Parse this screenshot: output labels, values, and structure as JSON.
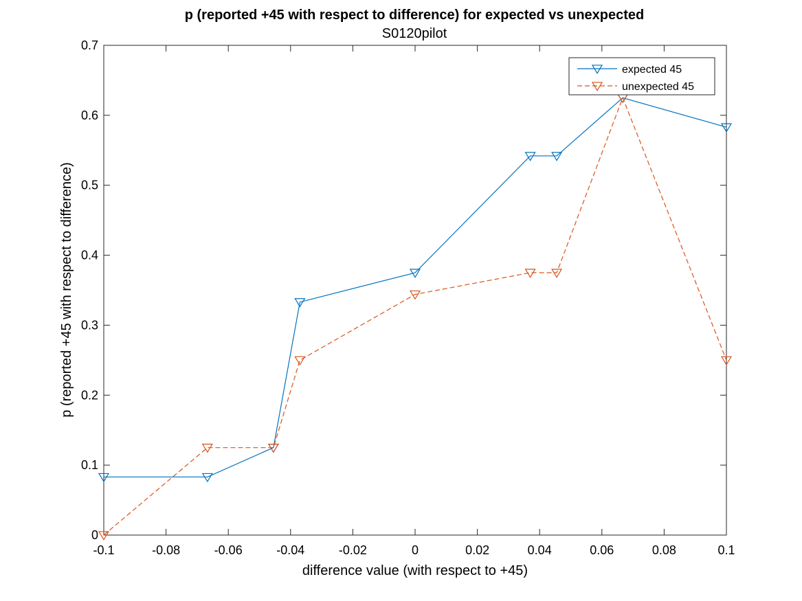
{
  "chart_data": {
    "type": "line",
    "title": "p  (reported +45 with respect to difference) for expected vs unexpected",
    "subtitle": "S0120pilot",
    "xlabel": "difference value (with respect to +45)",
    "ylabel": "p (reported +45 with respect to difference)",
    "xlim": [
      -0.1,
      0.1
    ],
    "ylim": [
      0,
      0.7
    ],
    "xticks": [
      -0.1,
      -0.08,
      -0.06,
      -0.04,
      -0.02,
      0,
      0.02,
      0.04,
      0.06,
      0.08,
      0.1
    ],
    "xtick_labels": [
      "-0.1",
      "-0.08",
      "-0.06",
      "-0.04",
      "-0.02",
      "0",
      "0.02",
      "0.04",
      "0.06",
      "0.08",
      "0.1"
    ],
    "yticks": [
      0,
      0.1,
      0.2,
      0.3,
      0.4,
      0.5,
      0.6,
      0.7
    ],
    "ytick_labels": [
      "0",
      "0.1",
      "0.2",
      "0.3",
      "0.4",
      "0.5",
      "0.6",
      "0.7"
    ],
    "grid": false,
    "legend_position": "top-right",
    "series": [
      {
        "name": "expected 45",
        "color": "#0072BD",
        "line_style": "solid",
        "marker": "down-triangle",
        "x": [
          -0.1,
          -0.0667,
          -0.0455,
          -0.037,
          0,
          0.037,
          0.0455,
          0.0667,
          0.1
        ],
        "y": [
          0.083,
          0.083,
          0.125,
          0.333,
          0.375,
          0.542,
          0.542,
          0.625,
          0.583
        ]
      },
      {
        "name": "unexpected 45",
        "color": "#D95319",
        "line_style": "dashed",
        "marker": "down-triangle",
        "x": [
          -0.1,
          -0.0667,
          -0.0455,
          -0.037,
          0,
          0.037,
          0.0455,
          0.0667,
          0.1
        ],
        "y": [
          0,
          0.125,
          0.125,
          0.25,
          0.344,
          0.375,
          0.375,
          0.625,
          0.25
        ]
      }
    ]
  }
}
